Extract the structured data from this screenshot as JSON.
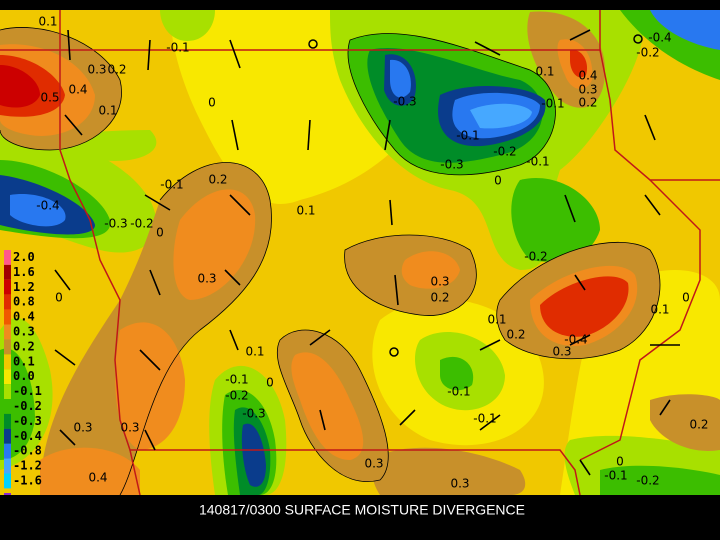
{
  "title": "140817/0300 SURFACE MOISTURE DIVERGENCE",
  "legend": {
    "levels": [
      {
        "label": "2.0",
        "color": "#ff5a8c"
      },
      {
        "label": "1.6",
        "color": "#a00000"
      },
      {
        "label": "1.2",
        "color": "#cc0000"
      },
      {
        "label": "0.8",
        "color": "#e02c00"
      },
      {
        "label": "0.4",
        "color": "#f05a00"
      },
      {
        "label": "0.3",
        "color": "#f08c1e"
      },
      {
        "label": "0.2",
        "color": "#c8902a"
      },
      {
        "label": "0.1",
        "color": "#f0c800"
      },
      {
        "label": "0.0",
        "color": "#f8e800"
      },
      {
        "label": "-0.1",
        "color": "#a8e000"
      },
      {
        "label": "-0.2",
        "color": "#3cbe00"
      },
      {
        "label": "-0.3",
        "color": "#008c28"
      },
      {
        "label": "-0.4",
        "color": "#0a3c8c"
      },
      {
        "label": "-0.8",
        "color": "#2878f0"
      },
      {
        "label": "-1.2",
        "color": "#46a8ff"
      },
      {
        "label": "-1.6",
        "color": "#00d2ff"
      }
    ]
  },
  "contour_labels": [
    "0.1",
    "-0.1",
    "0.3",
    "0.2",
    "0.5",
    "0.4",
    "0.1",
    "0",
    "-0.3",
    "-0.1",
    "-0.3",
    "-0.2",
    "-0.1",
    "0",
    "0.4",
    "0.1",
    "0.3",
    "0.2",
    "-0.1",
    "-0.4",
    "-0.2",
    "-0.1",
    "0.2",
    "0.1",
    "-0.4",
    "-0.3",
    "-0.2",
    "0",
    "0.3",
    "0.3",
    "0.2",
    "-0.2",
    "0",
    "0.1",
    "0.1",
    "0.2",
    "-0.4",
    "0.3",
    "0.1",
    "-0.1",
    "0",
    "-0.2",
    "-0.3",
    "-0.1",
    "-0.1",
    "0.3",
    "0.3",
    "0.2",
    "0.3",
    "0.3",
    "0.4",
    "0",
    "-0.1",
    "-0.2",
    "0"
  ]
}
